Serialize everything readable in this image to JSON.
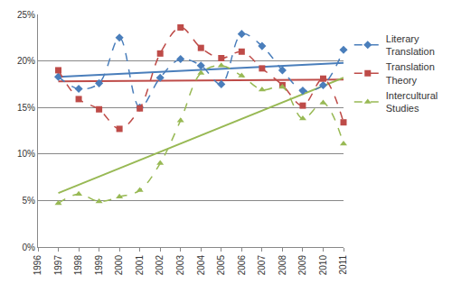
{
  "chart_data": {
    "type": "line",
    "x": [
      1997,
      1998,
      1999,
      2000,
      2001,
      2002,
      2003,
      2004,
      2005,
      2006,
      2007,
      2008,
      2009,
      2010,
      2011
    ],
    "series": [
      {
        "name": "Literary Translation",
        "color": "#4a7ebb",
        "marker": "diamond",
        "line_style": "dashed",
        "values": [
          18.3,
          17.0,
          17.6,
          22.5,
          15.0,
          18.2,
          20.2,
          19.5,
          17.5,
          22.9,
          21.6,
          19.0,
          16.8,
          17.4,
          21.2
        ],
        "trend": [
          18.3,
          19.8
        ]
      },
      {
        "name": "Translation Theory",
        "color": "#be4b48",
        "marker": "square",
        "line_style": "dashed",
        "values": [
          19.0,
          15.9,
          14.8,
          12.7,
          14.9,
          20.8,
          23.6,
          21.4,
          20.3,
          21.0,
          19.2,
          17.4,
          15.2,
          18.1,
          13.4
        ],
        "trend": [
          17.8,
          18.0
        ]
      },
      {
        "name": "Intercultural Studies",
        "color": "#98b954",
        "marker": "triangle-up",
        "line_style": "dashed",
        "values": [
          4.7,
          5.7,
          4.9,
          5.4,
          6.1,
          9.0,
          13.6,
          18.7,
          19.5,
          18.4,
          16.9,
          17.2,
          13.8,
          15.5,
          11.1
        ],
        "trend": [
          5.8,
          18.2
        ]
      }
    ],
    "xlim": [
      1996,
      2011
    ],
    "xticks": [
      1996,
      1997,
      1998,
      1999,
      2000,
      2001,
      2002,
      2003,
      2004,
      2005,
      2006,
      2007,
      2008,
      2009,
      2010,
      2011
    ],
    "ylim": [
      0,
      25
    ],
    "yticks": [
      {
        "value": 0,
        "label": "0%"
      },
      {
        "value": 5,
        "label": "5%"
      },
      {
        "value": 10,
        "label": "10%"
      },
      {
        "value": 15,
        "label": "15%"
      },
      {
        "value": 20,
        "label": "20%"
      },
      {
        "value": 25,
        "label": "25%"
      }
    ],
    "grid": true,
    "legend": "right"
  }
}
